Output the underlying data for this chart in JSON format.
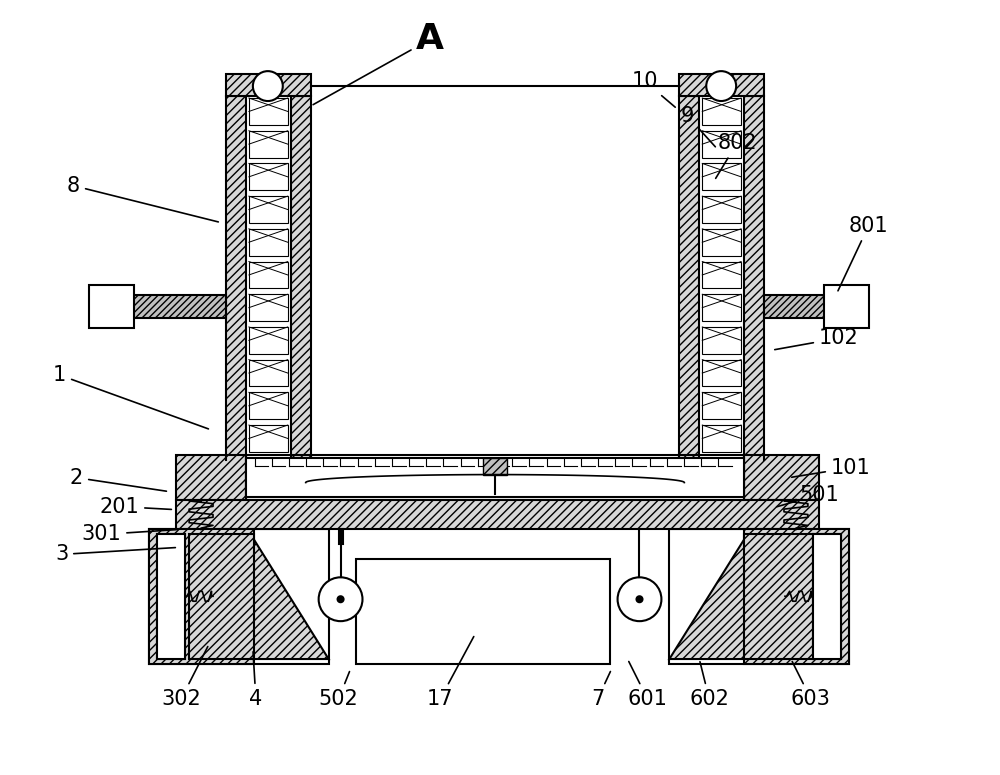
{
  "bg_color": "#ffffff",
  "lc": "#000000",
  "figsize": [
    10.0,
    7.75
  ],
  "dpi": 100,
  "title_label": "A",
  "labels": [
    [
      "A",
      430,
      38,
      310,
      105,
      true
    ],
    [
      "8",
      72,
      185,
      220,
      222,
      false
    ],
    [
      "1",
      58,
      375,
      210,
      430,
      false
    ],
    [
      "2",
      75,
      478,
      168,
      492,
      false
    ],
    [
      "201",
      118,
      507,
      173,
      510,
      false
    ],
    [
      "301",
      100,
      535,
      178,
      530,
      false
    ],
    [
      "3",
      60,
      555,
      177,
      548,
      false
    ],
    [
      "302",
      180,
      700,
      208,
      645,
      false
    ],
    [
      "4",
      255,
      700,
      252,
      650,
      false
    ],
    [
      "502",
      338,
      700,
      350,
      670,
      false
    ],
    [
      "17",
      440,
      700,
      475,
      635,
      false
    ],
    [
      "7",
      598,
      700,
      612,
      670,
      false
    ],
    [
      "601",
      648,
      700,
      628,
      660,
      false
    ],
    [
      "602",
      710,
      700,
      700,
      660,
      false
    ],
    [
      "603",
      812,
      700,
      792,
      660,
      false
    ],
    [
      "501",
      820,
      495,
      775,
      508,
      false
    ],
    [
      "102",
      840,
      338,
      773,
      350,
      false
    ],
    [
      "101",
      852,
      468,
      790,
      478,
      false
    ],
    [
      "801",
      870,
      225,
      838,
      293,
      false
    ],
    [
      "802",
      738,
      142,
      715,
      180,
      false
    ],
    [
      "9",
      688,
      115,
      718,
      148,
      false
    ],
    [
      "10",
      645,
      80,
      678,
      108,
      false
    ]
  ]
}
